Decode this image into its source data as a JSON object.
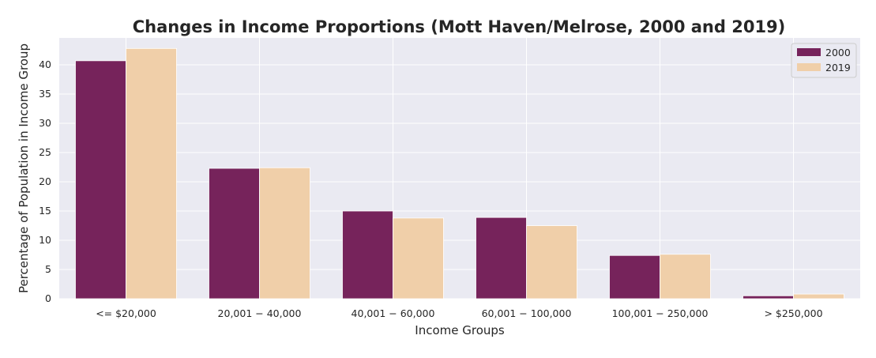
{
  "chart_data": {
    "type": "bar",
    "title": "Changes in Income Proportions (Mott Haven/Melrose, 2000 and 2019)",
    "xlabel": "Income Groups",
    "ylabel": "Percentage of Population in Income Group",
    "categories": [
      "<= $20,000",
      "20,001 − 40,000",
      "40,001 − 60,000",
      "60,001 − 100,000",
      "100,001 − 250,000",
      "> $250,000"
    ],
    "series": [
      {
        "name": "2000",
        "values": [
          40.7,
          22.3,
          15.0,
          13.9,
          7.4,
          0.5
        ]
      },
      {
        "name": "2019",
        "values": [
          42.8,
          22.4,
          13.8,
          12.5,
          7.6,
          0.8
        ]
      }
    ],
    "ylim": [
      0,
      44.6
    ],
    "yticks": [
      0,
      5,
      10,
      15,
      20,
      25,
      30,
      35,
      40
    ],
    "grid": true,
    "legend_position": "top-right",
    "colors": {
      "background": "#eaeaf2",
      "grid": "#ffffff",
      "series": [
        "#76235b",
        "#f0cfa9"
      ]
    }
  }
}
